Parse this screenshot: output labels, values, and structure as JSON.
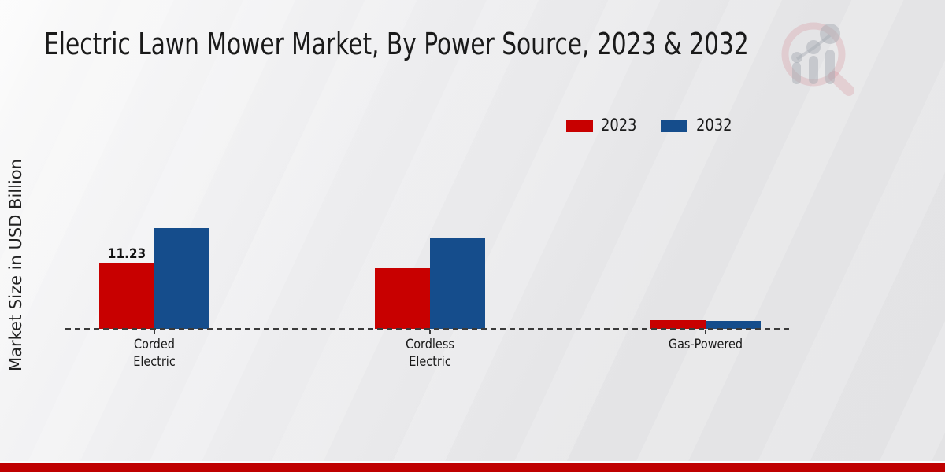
{
  "title": "Electric Lawn Mower Market, By Power Source, 2023 & 2032",
  "ylabel": "Market Size in USD Billion",
  "legend": {
    "items": [
      {
        "label": "2023",
        "color": "#c80000"
      },
      {
        "label": "2032",
        "color": "#154d8c"
      }
    ]
  },
  "chart_data": {
    "type": "bar",
    "categories": [
      "Corded Electric",
      "Cordless Electric",
      "Gas-Powered"
    ],
    "category_label_lines": [
      [
        "Corded",
        "Electric"
      ],
      [
        "Cordless",
        "Electric"
      ],
      [
        "Gas-Powered"
      ]
    ],
    "series": [
      {
        "name": "2023",
        "color": "#c80000",
        "values": [
          11.23,
          10.3,
          1.5
        ],
        "data_labels": [
          "11.23",
          "",
          ""
        ]
      },
      {
        "name": "2032",
        "color": "#154d8c",
        "values": [
          17.1,
          15.5,
          1.3
        ],
        "data_labels": [
          "",
          "",
          ""
        ]
      }
    ],
    "xlabel": "",
    "ylim": [
      0,
      20
    ],
    "grid": false,
    "legend_position": "top-right",
    "baseline_style": "dashed",
    "value_axis_hidden": true
  },
  "watermark": {
    "name": "market-research-magnifier-logo"
  },
  "footer": {
    "bar_color": "#bf0000"
  }
}
